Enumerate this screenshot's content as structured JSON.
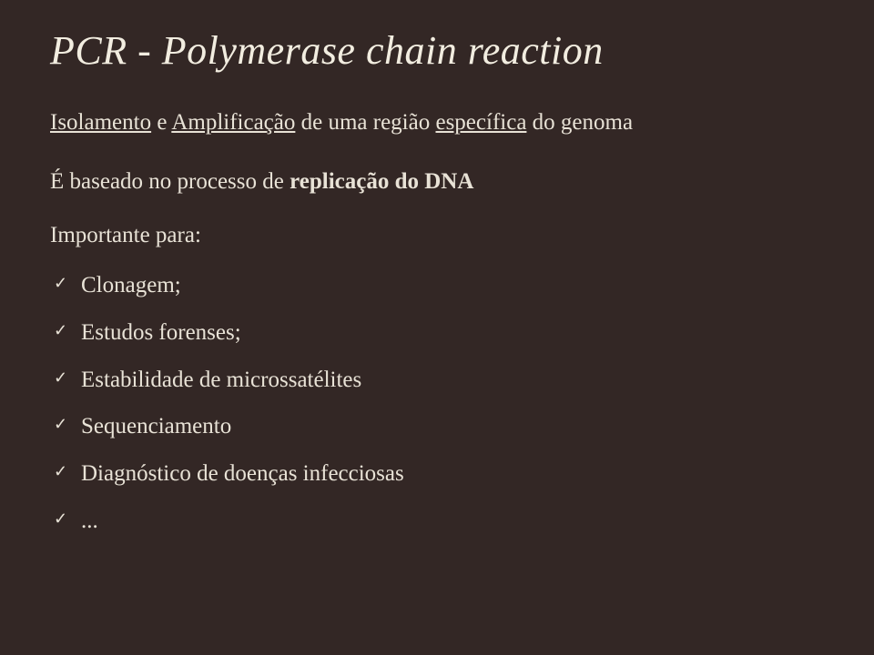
{
  "slide": {
    "background_color": "#332725",
    "text_color": "#e8e2d6",
    "title_color": "#f2ede0",
    "check_color": "#e8e2d6",
    "title": "PCR - Polymerase chain reaction",
    "title_fontsize": 44,
    "body_fontsize": 25,
    "subtitle_part1": "Isolamento",
    "subtitle_amp": " e ",
    "subtitle_part2": "Amplificação",
    "subtitle_rest": " de uma região ",
    "subtitle_underlined": "específica",
    "subtitle_tail": " do genoma",
    "paragraph_pre": "É baseado no processo de ",
    "paragraph_bold": "replicação do DNA",
    "list_heading": "Importante para:",
    "items": [
      "Clonagem;",
      "Estudos forenses;",
      "Estabilidade de microssatélites",
      "Sequenciamento",
      "Diagnóstico de doenças infecciosas",
      "..."
    ]
  }
}
